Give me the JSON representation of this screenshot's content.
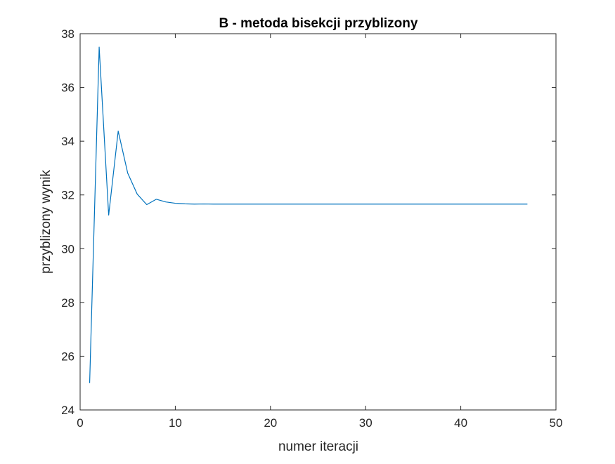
{
  "chart_data": {
    "type": "line",
    "title": "B - metoda bisekcji przyblizony",
    "xlabel": "numer iteracji",
    "ylabel": "przyblizony wynik",
    "xlim": [
      0,
      50
    ],
    "ylim": [
      24,
      38
    ],
    "xticks": [
      0,
      10,
      20,
      30,
      40,
      50
    ],
    "yticks": [
      24,
      26,
      28,
      30,
      32,
      34,
      36,
      38
    ],
    "grid": false,
    "series": [
      {
        "color": "#0072BD",
        "x": [
          1,
          2,
          3,
          4,
          5,
          6,
          7,
          8,
          9,
          10,
          11,
          12,
          13,
          14,
          15,
          16,
          17,
          18,
          19,
          20,
          21,
          22,
          23,
          24,
          25,
          26,
          27,
          28,
          29,
          30,
          31,
          32,
          33,
          34,
          35,
          36,
          37,
          38,
          39,
          40,
          41,
          42,
          43,
          44,
          45,
          46,
          47
        ],
        "y": [
          25.0,
          37.5,
          31.25,
          34.375,
          32.8125,
          32.03,
          31.64,
          31.84,
          31.74,
          31.69,
          31.67,
          31.66,
          31.665,
          31.66,
          31.66,
          31.66,
          31.66,
          31.66,
          31.66,
          31.66,
          31.66,
          31.66,
          31.66,
          31.66,
          31.66,
          31.66,
          31.66,
          31.66,
          31.66,
          31.66,
          31.66,
          31.66,
          31.66,
          31.66,
          31.66,
          31.66,
          31.66,
          31.66,
          31.66,
          31.66,
          31.66,
          31.66,
          31.66,
          31.66,
          31.66,
          31.66,
          31.66
        ]
      }
    ]
  }
}
